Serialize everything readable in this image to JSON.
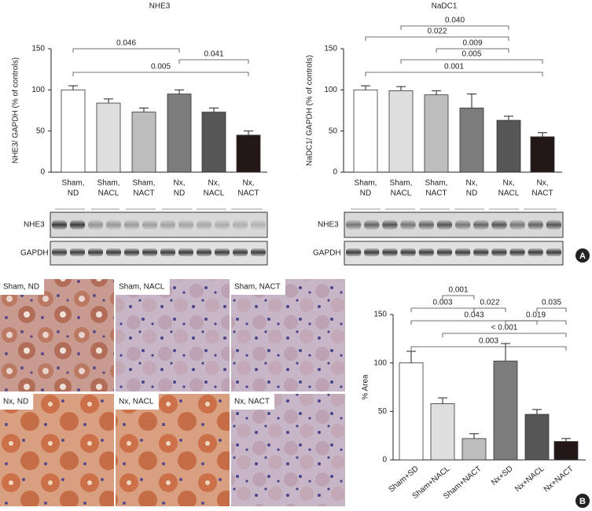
{
  "chart_data": [
    {
      "type": "bar",
      "title": "NHE3",
      "y_label": "NHE3/ GAPDH (% of controls)",
      "categories": [
        [
          "Sham,",
          "ND"
        ],
        [
          "Sham,",
          "NACL"
        ],
        [
          "Sham,",
          "NACT"
        ],
        [
          "Nx,",
          "ND"
        ],
        [
          "Nx,",
          "NACL"
        ],
        [
          "Nx,",
          "NACT"
        ]
      ],
      "values": [
        100,
        84,
        73,
        95,
        73,
        45
      ],
      "errors": [
        5,
        5,
        5,
        5,
        5,
        5
      ],
      "colors": [
        "#ffffff",
        "#dedede",
        "#bdbdbd",
        "#7c7c7c",
        "#565656",
        "#231815"
      ],
      "ylim": [
        0,
        150
      ],
      "yticks": [
        0,
        50,
        100,
        150
      ],
      "annotations": [
        {
          "text": "0.046",
          "from": 0,
          "to": 3
        },
        {
          "text": "0.041",
          "from": 3,
          "to": 5
        },
        {
          "text": "0.005",
          "from": 0,
          "to": 5
        }
      ]
    },
    {
      "type": "bar",
      "title": "NaDC1",
      "y_label": "NaDC1/ GAPDH (% of controls)",
      "categories": [
        [
          "Sham,",
          "ND"
        ],
        [
          "Sham,",
          "NACL"
        ],
        [
          "Sham,",
          "NACT"
        ],
        [
          "Nx,",
          "ND"
        ],
        [
          "Nx,",
          "NACL"
        ],
        [
          "Nx,",
          "NACT"
        ]
      ],
      "values": [
        100,
        99,
        94,
        78,
        63,
        43
      ],
      "errors": [
        5,
        5,
        5,
        17,
        5,
        5
      ],
      "colors": [
        "#ffffff",
        "#dedede",
        "#bdbdbd",
        "#7c7c7c",
        "#565656",
        "#231815"
      ],
      "ylim": [
        0,
        150
      ],
      "yticks": [
        0,
        50,
        100,
        150
      ],
      "annotations": [
        {
          "text": "0.040",
          "from": 1,
          "to": 4
        },
        {
          "text": "0.022",
          "from": 0,
          "to": 4
        },
        {
          "text": "0.009",
          "from": 2,
          "to": 4
        },
        {
          "text": "0.005",
          "from": 1,
          "to": 5
        },
        {
          "text": "0.001",
          "from": 0,
          "to": 5
        }
      ]
    },
    {
      "type": "bar",
      "y_label": "% Area",
      "categories": [
        [
          "Sham+SD"
        ],
        [
          "Sham+NACL"
        ],
        [
          "Sham+NACT"
        ],
        [
          "Nx+SD"
        ],
        [
          "Nx+NACL"
        ],
        [
          "Nx+NACT"
        ]
      ],
      "values": [
        100,
        58,
        22,
        102,
        47,
        19
      ],
      "errors": [
        12,
        6,
        5,
        18,
        5,
        3
      ],
      "colors": [
        "#ffffff",
        "#dedede",
        "#bdbdbd",
        "#7c7c7c",
        "#565656",
        "#231815"
      ],
      "ylim": [
        0,
        150
      ],
      "yticks": [
        0,
        50,
        100,
        150
      ],
      "annotations": [
        {
          "text": "0.001",
          "from": 1,
          "to": 2
        },
        {
          "text": "0.003",
          "from": 0,
          "to": 2
        },
        {
          "text": "0.022",
          "from": 2,
          "to": 3
        },
        {
          "text": "0.043",
          "from": 0,
          "to": 4
        },
        {
          "text": "0.035",
          "from": 4,
          "to": 5
        },
        {
          "text": "0.019",
          "from": 3,
          "to": 5
        },
        {
          "text": "< 0.001",
          "from": 1,
          "to": 5
        },
        {
          "text": "0.003",
          "from": 0,
          "to": 5
        }
      ]
    }
  ],
  "blots": [
    {
      "rows": [
        "NHE3",
        "GAPDH"
      ]
    },
    {
      "rows": [
        "NHE3",
        "GAPDH"
      ]
    }
  ],
  "histology": [
    "Sham, ND",
    "Sham, NACL",
    "Sham, NACT",
    "Nx, ND",
    "Nx, NACL",
    "Nx, NACT"
  ],
  "panel_labels": [
    "A",
    "B"
  ]
}
